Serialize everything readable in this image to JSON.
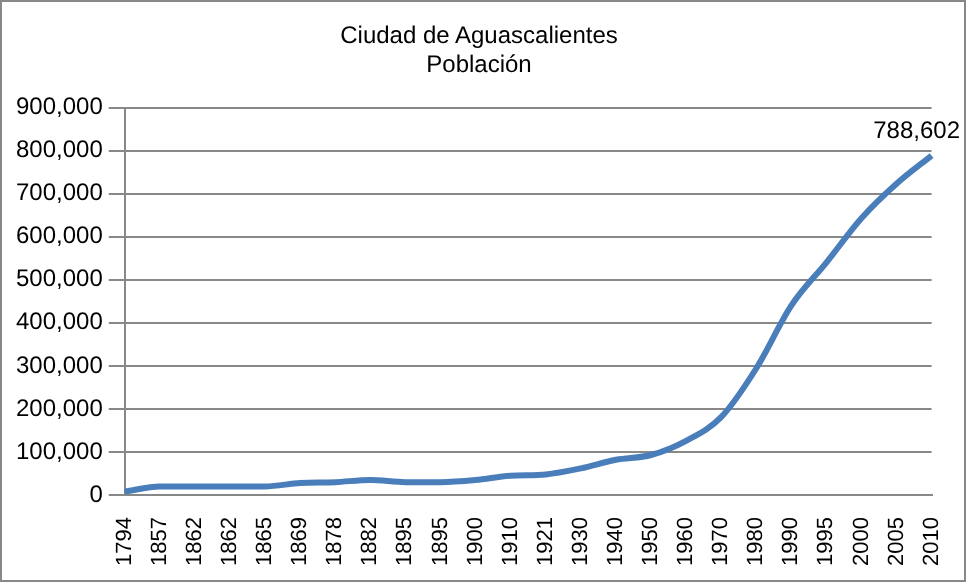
{
  "chart_data": {
    "type": "line",
    "title": "Ciudad de Aguascalientes",
    "subtitle": "Población",
    "categories": [
      "1794",
      "1857",
      "1862",
      "1862",
      "1865",
      "1869",
      "1878",
      "1882",
      "1895",
      "1895",
      "1900",
      "1910",
      "1921",
      "1930",
      "1940",
      "1950",
      "1960",
      "1970",
      "1980",
      "1990",
      "1995",
      "2000",
      "2005",
      "2010"
    ],
    "series": [
      {
        "color": "#4a7ebb",
        "values": [
          8000,
          20000,
          20000,
          20000,
          20000,
          28000,
          30000,
          35000,
          30000,
          30000,
          35000,
          45000,
          48000,
          62000,
          82000,
          93000,
          126000,
          181000,
          294000,
          440000,
          540000,
          643000,
          723000,
          788602
        ],
        "value_labels": [
          null,
          null,
          null,
          null,
          null,
          null,
          null,
          null,
          null,
          null,
          null,
          null,
          null,
          null,
          null,
          null,
          null,
          null,
          null,
          null,
          null,
          null,
          null,
          "788,602"
        ]
      }
    ],
    "ylim": [
      0,
      900000
    ],
    "yticks": [
      0,
      {
        "value": 100000,
        "label": "100,000"
      },
      {
        "value": 200000,
        "label": "200,000"
      },
      {
        "value": 300000,
        "label": "300,000"
      },
      {
        "value": 400000,
        "label": "400,000"
      },
      {
        "value": 500000,
        "label": "500,000"
      },
      {
        "value": 600000,
        "label": "600,000"
      },
      {
        "value": 700000,
        "label": "700,000"
      },
      {
        "value": 800000,
        "label": "800,000"
      },
      {
        "value": 900000,
        "label": "900,000"
      }
    ],
    "grid": "y",
    "legend": false,
    "marker": "none",
    "line_style": "solid"
  }
}
